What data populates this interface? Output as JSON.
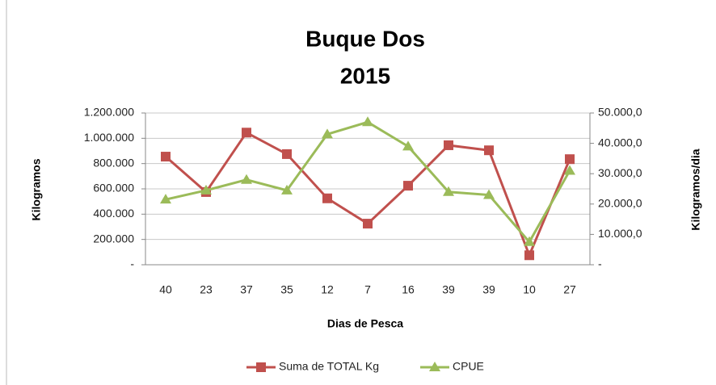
{
  "chart_data": {
    "type": "line",
    "title": [
      "Buque Dos",
      "2015"
    ],
    "x_label": "Dias de Pesca",
    "y_label": "Kilogramos",
    "y2_label": "Kilogramos/dia",
    "categories": [
      "40",
      "23",
      "37",
      "35",
      "12",
      "7",
      "16",
      "39",
      "39",
      "10",
      "27"
    ],
    "series": [
      {
        "name": "Suma de TOTAL Kg",
        "color": "#c0504d",
        "marker": "square",
        "values": [
          855000,
          575000,
          1045000,
          875000,
          525000,
          325000,
          625000,
          945000,
          905000,
          75000,
          835000
        ]
      },
      {
        "name": "CPUE",
        "color": "#9bbb59",
        "marker": "triangle",
        "axis": "y2",
        "values": [
          21500,
          24500,
          28000,
          24500,
          43000,
          47000,
          39000,
          24000,
          23000,
          7500,
          31000
        ]
      }
    ],
    "ylim": [
      0,
      1200000
    ],
    "yticks": [
      {
        "value": 0,
        "label": "-"
      },
      {
        "value": 200000,
        "label": "200.000"
      },
      {
        "value": 400000,
        "label": "400.000"
      },
      {
        "value": 600000,
        "label": "600.000"
      },
      {
        "value": 800000,
        "label": "800.000"
      },
      {
        "value": 1000000,
        "label": "1.000.000"
      },
      {
        "value": 1200000,
        "label": "1.200.000"
      }
    ],
    "y2lim": [
      0,
      50000
    ],
    "y2ticks": [
      {
        "value": 0,
        "label": "-"
      },
      {
        "value": 10000,
        "label": "10.000,0"
      },
      {
        "value": 20000,
        "label": "20.000,0"
      },
      {
        "value": 30000,
        "label": "30.000,0"
      },
      {
        "value": 40000,
        "label": "40.000,0"
      },
      {
        "value": 50000,
        "label": "50.000,0"
      }
    ],
    "grid": true,
    "legend": "bottom"
  }
}
